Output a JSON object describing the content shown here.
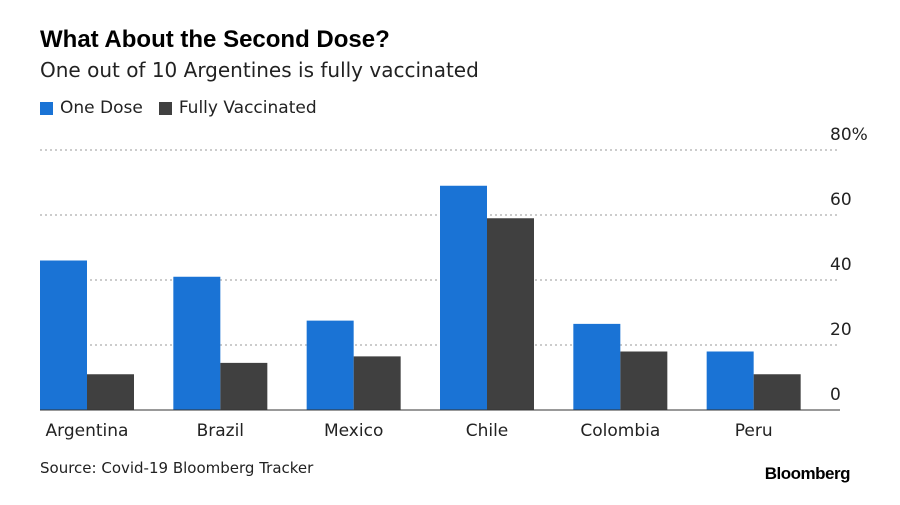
{
  "header": {
    "title": "What About the Second Dose?",
    "subtitle": "One out of 10 Argentines is fully vaccinated"
  },
  "legend": [
    {
      "label": "One Dose",
      "color": "#1a73d5"
    },
    {
      "label": "Fully Vaccinated",
      "color": "#404040"
    }
  ],
  "footer": {
    "source": "Source: Covid-19 Bloomberg Tracker",
    "brand": "Bloomberg"
  },
  "chart_data": {
    "type": "bar",
    "title": "What About the Second Dose?",
    "subtitle": "One out of 10 Argentines is fully vaccinated",
    "categories": [
      "Argentina",
      "Brazil",
      "Mexico",
      "Chile",
      "Colombia",
      "Peru"
    ],
    "series": [
      {
        "name": "One Dose",
        "color": "#1a73d5",
        "values": [
          46,
          41,
          27.5,
          69,
          26.5,
          18
        ]
      },
      {
        "name": "Fully Vaccinated",
        "color": "#404040",
        "values": [
          11,
          14.5,
          16.5,
          59,
          18,
          11
        ]
      }
    ],
    "ylim": [
      0,
      80
    ],
    "yticks": [
      0,
      20,
      40,
      60,
      80
    ],
    "ytick_labels": [
      "0",
      "20",
      "40",
      "60",
      "80%"
    ],
    "y_axis_side": "right",
    "grid": true,
    "legend_position": "top-left"
  }
}
